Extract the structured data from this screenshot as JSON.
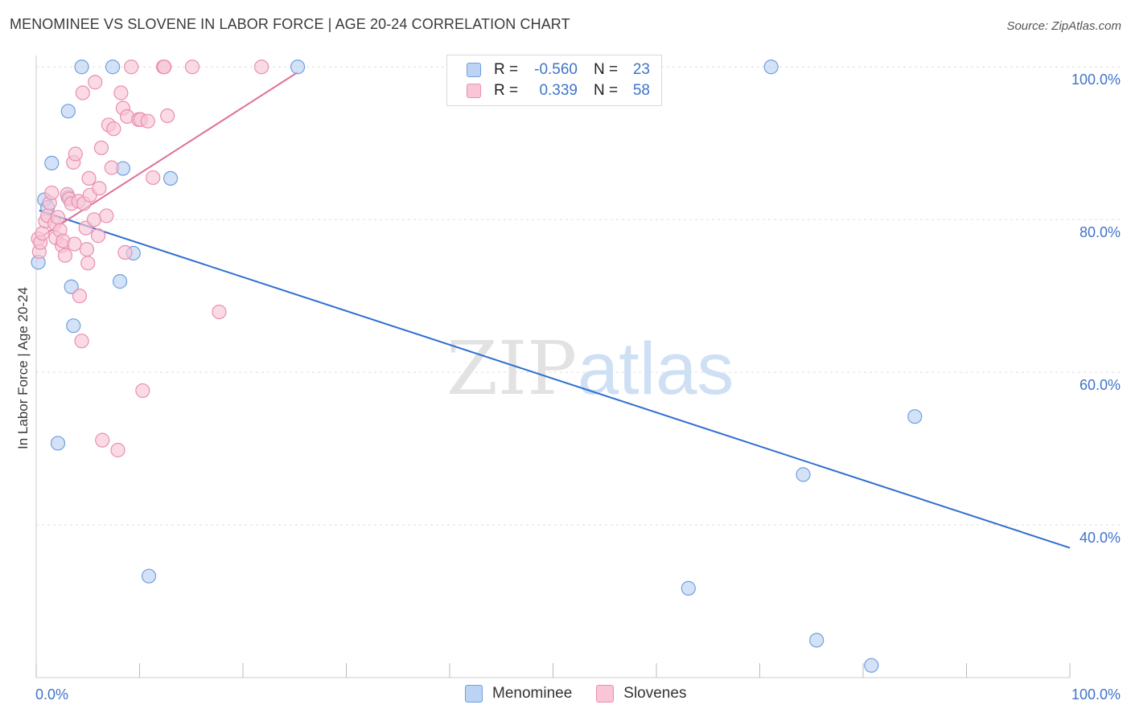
{
  "title": "MENOMINEE VS SLOVENE IN LABOR FORCE | AGE 20-24 CORRELATION CHART",
  "source": "Source: ZipAtlas.com",
  "watermark": {
    "zip": "ZIP",
    "atlas": "atlas"
  },
  "colors": {
    "blue_fill": "#bdd3f3",
    "blue_stroke": "#6f9fe0",
    "blue_line": "#2f6fd1",
    "pink_fill": "#f8c6d6",
    "pink_stroke": "#ea8fb0",
    "pink_line": "#e0709a",
    "axis_text": "#3f74c9",
    "grid": "#dddddd"
  },
  "legend": {
    "rows": [
      {
        "r_label": "R =",
        "r_value": "-0.560",
        "n_label": "N =",
        "n_value": "23"
      },
      {
        "r_label": "R =",
        "r_value": "0.339",
        "n_label": "N =",
        "n_value": "58"
      }
    ]
  },
  "bottom_legend": [
    "Menominee",
    "Slovenes"
  ],
  "chart_data": {
    "type": "scatter",
    "title": "MENOMINEE VS SLOVENE IN LABOR FORCE | AGE 20-24 CORRELATION CHART",
    "xlabel": "",
    "ylabel": "In Labor Force | Age 20-24",
    "xlim": [
      0,
      100
    ],
    "ylim": [
      20,
      101.5
    ],
    "x_tick_labels": [
      "0.0%",
      "100.0%"
    ],
    "y_ticks": [
      40,
      60,
      80,
      100
    ],
    "y_tick_labels": [
      "40.0%",
      "60.0%",
      "80.0%",
      "100.0%"
    ],
    "series": [
      {
        "name": "Menominee",
        "color": "blue",
        "trend": {
          "x": [
            0.3,
            100
          ],
          "y": [
            81.2,
            37.0
          ]
        },
        "points": [
          [
            0.2,
            74.4
          ],
          [
            0.8,
            82.6
          ],
          [
            1.1,
            81.6
          ],
          [
            1.5,
            87.4
          ],
          [
            2.1,
            50.7
          ],
          [
            3.1,
            82.9
          ],
          [
            3.1,
            94.2
          ],
          [
            3.4,
            71.2
          ],
          [
            3.6,
            66.1
          ],
          [
            4.4,
            100.0
          ],
          [
            7.4,
            100.0
          ],
          [
            8.1,
            71.9
          ],
          [
            8.4,
            86.7
          ],
          [
            9.4,
            75.6
          ],
          [
            10.9,
            33.3
          ],
          [
            13.0,
            85.4
          ],
          [
            25.3,
            100.0
          ],
          [
            63.1,
            31.7
          ],
          [
            71.1,
            100.0
          ],
          [
            74.2,
            46.6
          ],
          [
            75.5,
            24.9
          ],
          [
            80.8,
            21.6
          ],
          [
            85.0,
            54.2
          ]
        ]
      },
      {
        "name": "Slovenes",
        "color": "pink",
        "trend": {
          "x": [
            0.3,
            25.3
          ],
          "y": [
            77.6,
            99.3
          ]
        },
        "points": [
          [
            0.2,
            77.5
          ],
          [
            0.3,
            75.8
          ],
          [
            0.4,
            77.0
          ],
          [
            0.6,
            78.2
          ],
          [
            0.9,
            79.8
          ],
          [
            1.1,
            80.5
          ],
          [
            1.3,
            82.2
          ],
          [
            1.5,
            83.5
          ],
          [
            1.8,
            79.5
          ],
          [
            1.9,
            77.6
          ],
          [
            2.1,
            80.3
          ],
          [
            2.3,
            78.6
          ],
          [
            2.5,
            76.6
          ],
          [
            2.6,
            77.2
          ],
          [
            2.8,
            75.3
          ],
          [
            3.0,
            83.3
          ],
          [
            3.2,
            82.7
          ],
          [
            3.4,
            82.1
          ],
          [
            3.6,
            87.5
          ],
          [
            3.7,
            76.8
          ],
          [
            3.8,
            88.6
          ],
          [
            4.1,
            82.4
          ],
          [
            4.2,
            70.0
          ],
          [
            4.4,
            64.1
          ],
          [
            4.5,
            96.6
          ],
          [
            4.6,
            82.1
          ],
          [
            4.8,
            78.9
          ],
          [
            4.9,
            76.1
          ],
          [
            5.0,
            74.3
          ],
          [
            5.1,
            85.4
          ],
          [
            5.2,
            83.2
          ],
          [
            5.6,
            80.0
          ],
          [
            5.7,
            98.0
          ],
          [
            6.0,
            77.9
          ],
          [
            6.1,
            84.1
          ],
          [
            6.3,
            89.4
          ],
          [
            6.4,
            51.1
          ],
          [
            6.8,
            80.5
          ],
          [
            7.0,
            92.4
          ],
          [
            7.3,
            86.8
          ],
          [
            7.5,
            91.9
          ],
          [
            7.9,
            49.8
          ],
          [
            8.2,
            96.6
          ],
          [
            8.4,
            94.6
          ],
          [
            8.6,
            75.7
          ],
          [
            8.8,
            93.5
          ],
          [
            9.2,
            100.0
          ],
          [
            9.9,
            93.1
          ],
          [
            10.1,
            93.1
          ],
          [
            10.3,
            57.6
          ],
          [
            10.8,
            92.9
          ],
          [
            11.3,
            85.5
          ],
          [
            12.3,
            100.0
          ],
          [
            12.4,
            100.0
          ],
          [
            12.7,
            93.6
          ],
          [
            15.1,
            100.0
          ],
          [
            17.7,
            67.9
          ],
          [
            21.8,
            100.0
          ]
        ]
      }
    ]
  }
}
